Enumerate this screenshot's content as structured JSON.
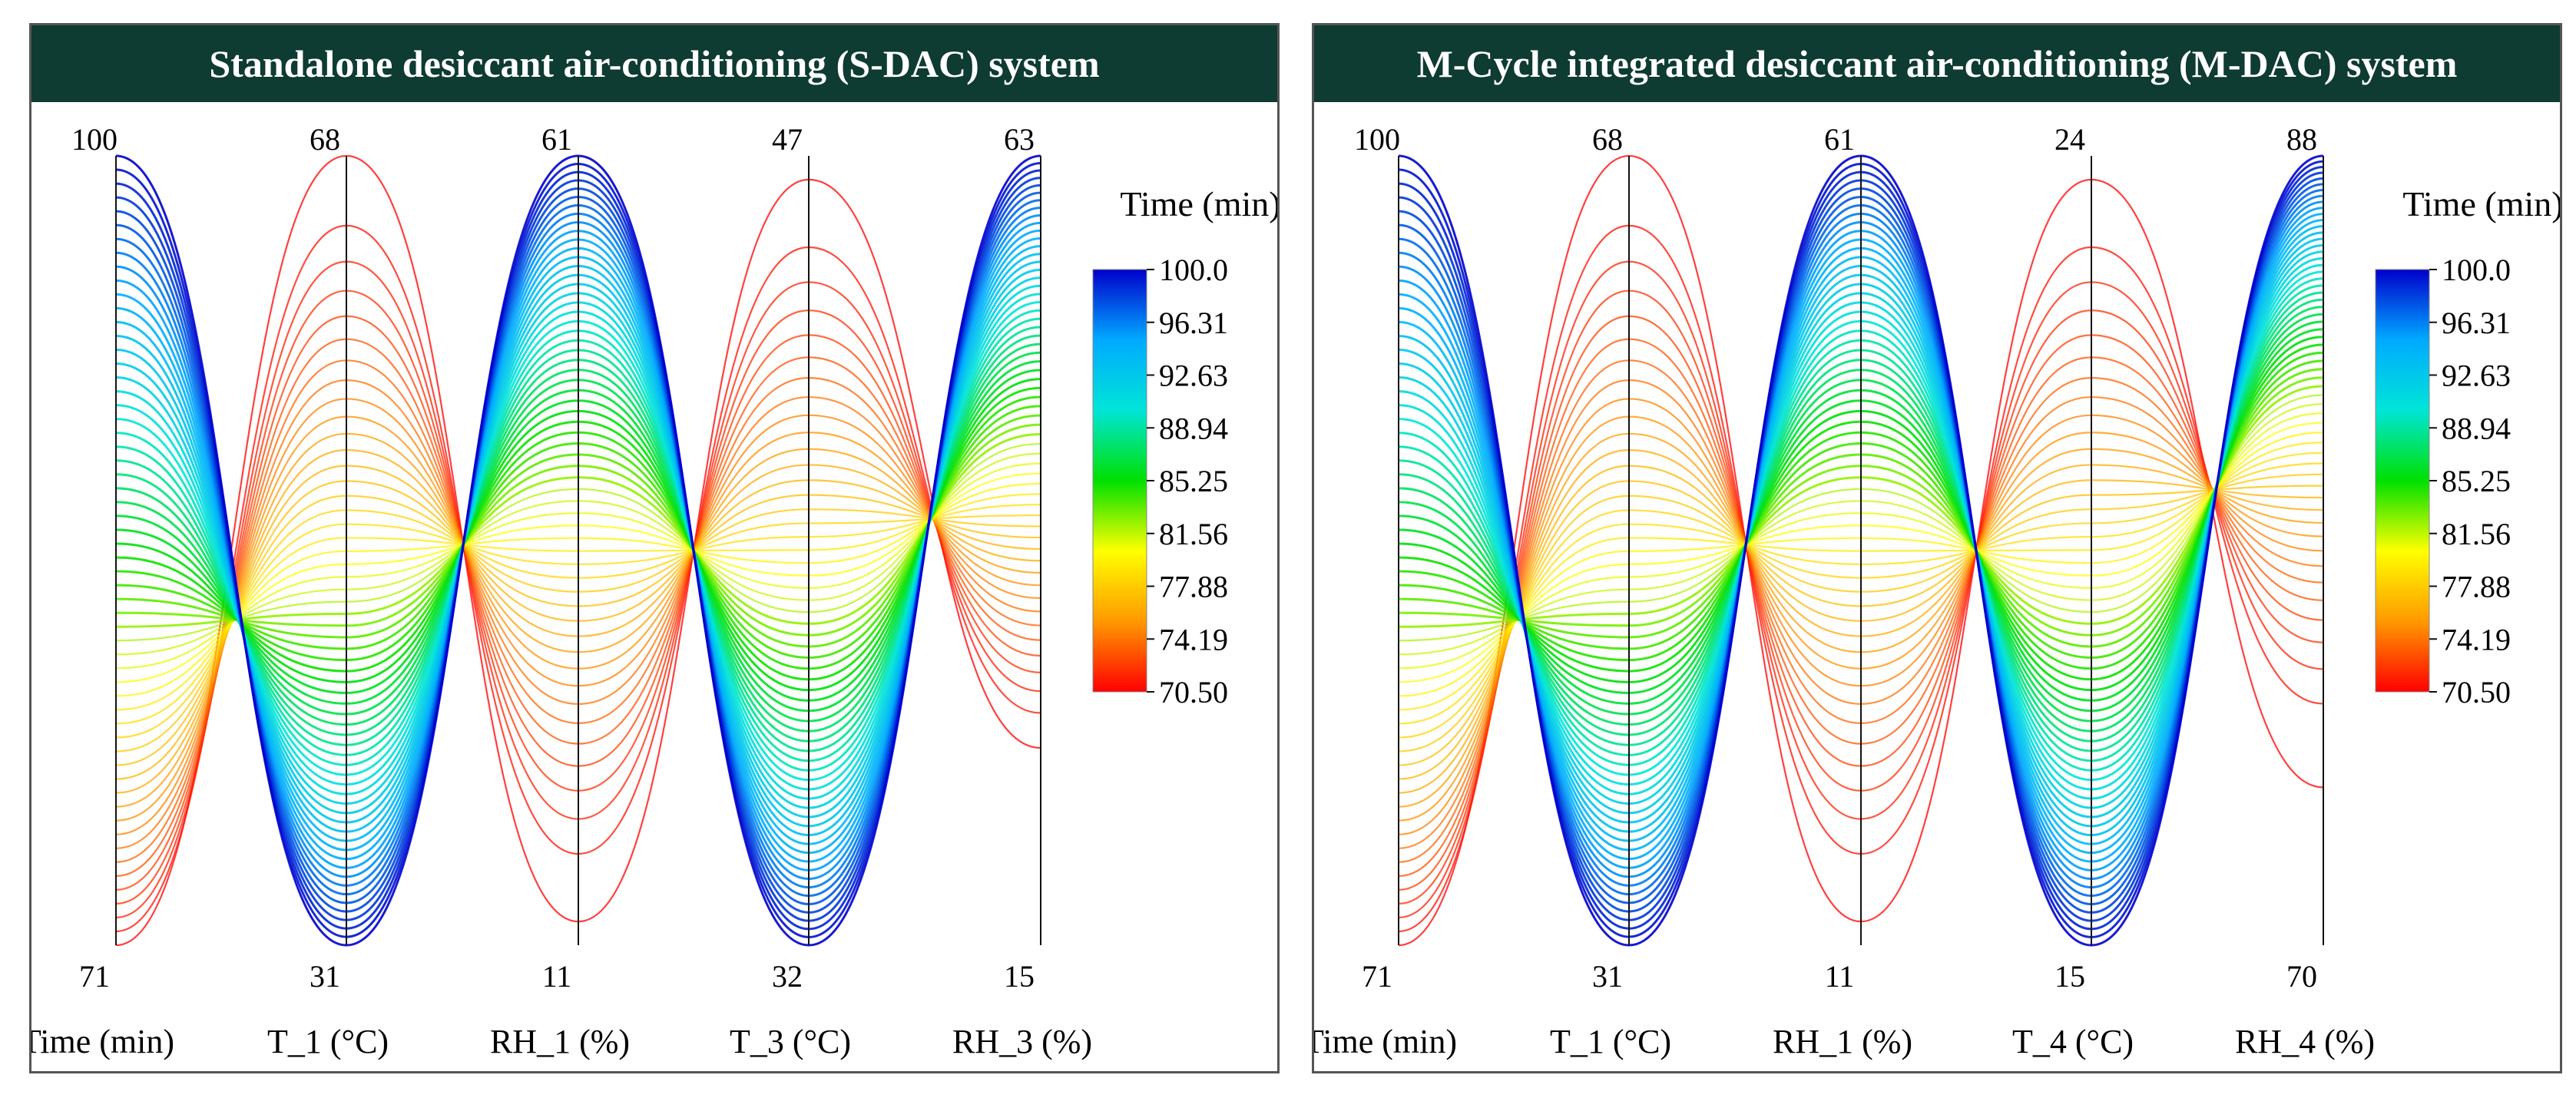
{
  "chart_data": [
    {
      "type": "parallel-coordinates",
      "title": "Standalone desiccant air-conditioning (S-DAC) system",
      "axes": [
        {
          "label": "Time (min)",
          "min": 71,
          "max": 100
        },
        {
          "label": "T_1 (°C)",
          "min": 31,
          "max": 68
        },
        {
          "label": "RH_1 (%)",
          "min": 11,
          "max": 61
        },
        {
          "label": "T_3 (°C)",
          "min": 32,
          "max": 47
        },
        {
          "label": "RH_3 (%)",
          "min": 15,
          "max": 63
        }
      ],
      "colorbar": {
        "title": "Time (min)",
        "ticks": [
          "100.0",
          "96.31",
          "92.63",
          "88.94",
          "85.25",
          "81.56",
          "77.88",
          "74.19",
          "70.50"
        ],
        "colors": [
          "#0000cc",
          "#00aaff",
          "#00e5d8",
          "#00e000",
          "#ffff00",
          "#ff9900",
          "#ff0000"
        ],
        "range": [
          70.5,
          100.0
        ]
      },
      "series_time_range": [
        71,
        100
      ],
      "series_count": 58
    },
    {
      "type": "parallel-coordinates",
      "title": "M-Cycle integrated desiccant air-conditioning (M-DAC) system",
      "axes": [
        {
          "label": "Time (min)",
          "min": 71,
          "max": 100
        },
        {
          "label": "T_1 (°C)",
          "min": 31,
          "max": 68
        },
        {
          "label": "RH_1 (%)",
          "min": 11,
          "max": 61
        },
        {
          "label": "T_4 (°C)",
          "min": 15,
          "max": 24
        },
        {
          "label": "RH_4 (%)",
          "min": 70,
          "max": 88
        }
      ],
      "colorbar": {
        "title": "Time (min)",
        "ticks": [
          "100.0",
          "96.31",
          "92.63",
          "88.94",
          "85.25",
          "81.56",
          "77.88",
          "74.19",
          "70.50"
        ],
        "colors": [
          "#0000cc",
          "#00aaff",
          "#00e5d8",
          "#00e000",
          "#ffff00",
          "#ff9900",
          "#ff0000"
        ],
        "range": [
          70.5,
          100.0
        ]
      },
      "series_time_range": [
        71,
        100
      ],
      "series_count": 58
    }
  ]
}
